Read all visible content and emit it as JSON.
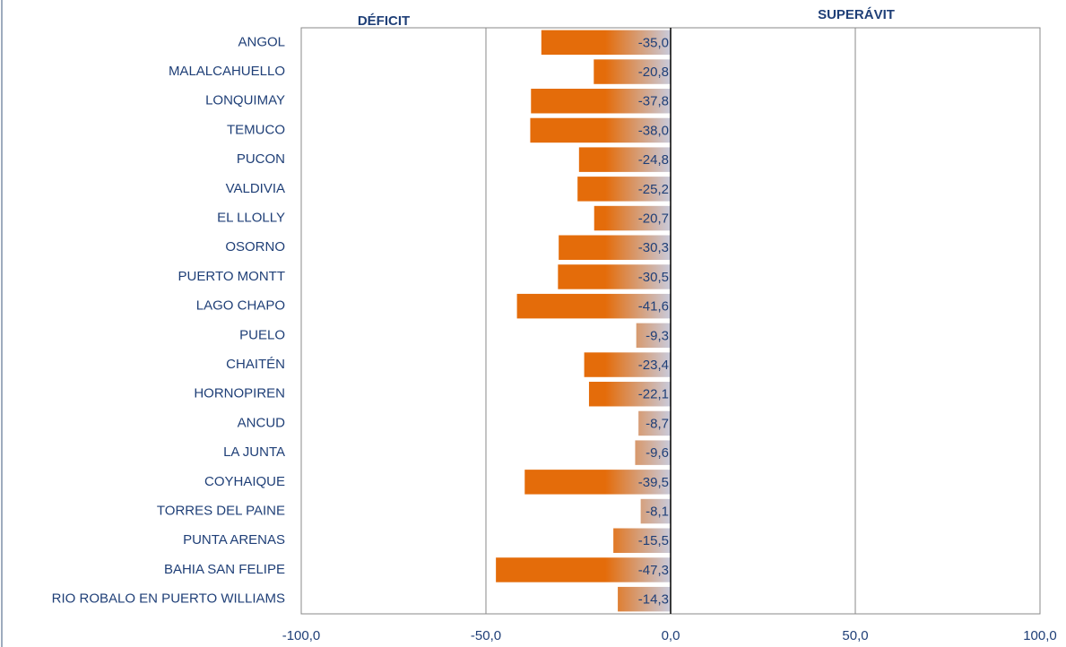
{
  "chart_data": {
    "type": "bar",
    "orientation": "horizontal",
    "annotations": [
      "DÉFICIT",
      "SUPERÁVIT"
    ],
    "categories": [
      "ANGOL",
      "MALALCAHUELLO",
      "LONQUIMAY",
      "TEMUCO",
      "PUCON",
      "VALDIVIA",
      "EL LLOLLY",
      "OSORNO",
      "PUERTO MONTT",
      "LAGO CHAPO",
      "PUELO",
      "CHAITÉN",
      "HORNOPIREN",
      "ANCUD",
      "LA JUNTA",
      "COYHAIQUE",
      "TORRES DEL PAINE",
      "PUNTA ARENAS",
      "BAHIA SAN FELIPE",
      "RIO ROBALO EN PUERTO WILLIAMS"
    ],
    "values": [
      -35.0,
      -20.8,
      -37.8,
      -38.0,
      -24.8,
      -25.2,
      -20.7,
      -30.3,
      -30.5,
      -41.6,
      -9.3,
      -23.4,
      -22.1,
      -8.7,
      -9.6,
      -39.5,
      -8.1,
      -15.5,
      -47.3,
      -14.3
    ],
    "value_labels": [
      "-35,0",
      "-20,8",
      "-37,8",
      "-38,0",
      "-24,8",
      "-25,2",
      "-20,7",
      "-30,3",
      "-30,5",
      "-41,6",
      "-9,3",
      "-23,4",
      "-22,1",
      "-8,7",
      "-9,6",
      "-39,5",
      "-8,1",
      "-15,5",
      "-47,3",
      "-14,3"
    ],
    "color": "#e46c0a",
    "xlim": [
      -100,
      100
    ],
    "xticks": [
      {
        "value": -100,
        "label": "-100,0"
      },
      {
        "value": -50,
        "label": "-50,0"
      },
      {
        "value": 0,
        "label": "0,0"
      },
      {
        "value": 50,
        "label": "50,0"
      },
      {
        "value": 100,
        "label": "100,0"
      }
    ],
    "grid": true
  }
}
